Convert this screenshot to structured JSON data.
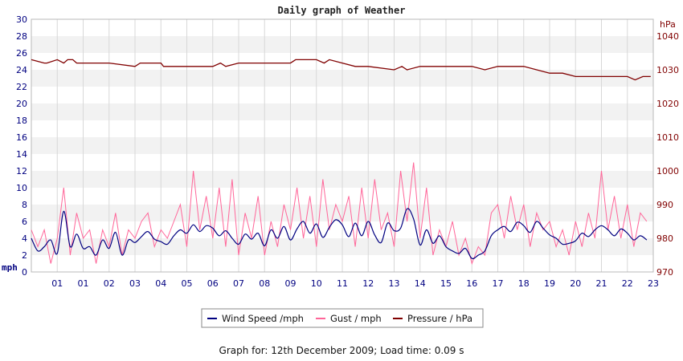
{
  "chart_data": {
    "type": "line",
    "title": "Daily graph of Weather",
    "left_axis": {
      "unit": "mph",
      "ylim": [
        0,
        30
      ],
      "ticks": [
        "0",
        "2",
        "4",
        "6",
        "8",
        "10",
        "12",
        "14",
        "16",
        "18",
        "20",
        "22",
        "24",
        "26",
        "28",
        "30"
      ]
    },
    "right_axis": {
      "unit": "hPa",
      "ylim": [
        970,
        1045
      ],
      "ticks": [
        "970",
        "980",
        "990",
        "1000",
        "1010",
        "1020",
        "1030",
        "1040"
      ]
    },
    "x_axis": {
      "range": [
        0,
        24
      ],
      "ticks": [
        "01",
        "01",
        "02",
        "03",
        "04",
        "05",
        "06",
        "07",
        "08",
        "09",
        "10",
        "11",
        "12",
        "13",
        "14",
        "15",
        "16",
        "17",
        "18",
        "19",
        "20",
        "21",
        "22",
        "23"
      ]
    },
    "grid": true,
    "legend_position": "bottom-center",
    "colors": {
      "wind": "#000080",
      "gust": "#ff6699",
      "pressure": "#800000",
      "band": "#f2f2f2",
      "grid": "#d8d8d8"
    },
    "series": [
      {
        "name": "Wind Speed /mph",
        "axis": "left",
        "x": [
          0,
          0.25,
          0.5,
          0.75,
          1,
          1.25,
          1.5,
          1.75,
          2,
          2.25,
          2.5,
          2.75,
          3,
          3.25,
          3.5,
          3.75,
          4,
          4.25,
          4.5,
          4.75,
          5,
          5.25,
          5.5,
          5.75,
          6,
          6.25,
          6.5,
          6.75,
          7,
          7.25,
          7.5,
          7.75,
          8,
          8.25,
          8.5,
          8.75,
          9,
          9.25,
          9.5,
          9.75,
          10,
          10.25,
          10.5,
          10.75,
          11,
          11.25,
          11.5,
          11.75,
          12,
          12.25,
          12.5,
          12.75,
          13,
          13.25,
          13.5,
          13.75,
          14,
          14.25,
          14.5,
          14.75,
          15,
          15.25,
          15.5,
          15.75,
          16,
          16.25,
          16.5,
          16.75,
          17,
          17.25,
          17.5,
          17.75,
          18,
          18.25,
          18.5,
          18.75,
          19,
          19.25,
          19.5,
          19.75,
          20,
          20.25,
          20.5,
          20.75,
          21,
          21.25,
          21.5,
          21.75,
          22,
          22.25,
          22.5,
          22.75,
          23,
          23.25,
          23.5,
          23.75
        ],
        "y": [
          4.0,
          2.5,
          3.0,
          3.8,
          2.2,
          7.2,
          3.0,
          4.5,
          2.8,
          3.0,
          2.0,
          3.8,
          2.8,
          4.7,
          2.0,
          3.8,
          3.5,
          4.2,
          4.8,
          3.9,
          3.6,
          3.3,
          4.3,
          5.0,
          4.6,
          5.6,
          4.8,
          5.5,
          5.2,
          4.3,
          4.9,
          4.0,
          3.3,
          4.5,
          3.9,
          4.6,
          3.1,
          5.0,
          4.0,
          5.4,
          3.8,
          5.1,
          6.0,
          4.6,
          5.7,
          4.1,
          5.3,
          6.2,
          5.6,
          4.2,
          5.8,
          4.3,
          6.0,
          4.4,
          3.5,
          5.8,
          4.9,
          5.2,
          7.5,
          6.3,
          3.2,
          5.0,
          3.4,
          4.3,
          3.0,
          2.5,
          2.2,
          2.8,
          1.6,
          2.0,
          2.5,
          4.3,
          5.0,
          5.4,
          4.8,
          5.9,
          5.5,
          4.7,
          6.0,
          5.2,
          4.4,
          4.0,
          3.3,
          3.4,
          3.7,
          4.6,
          4.2,
          5.0,
          5.5,
          5.0,
          4.3,
          5.1,
          4.6,
          3.8,
          4.3,
          3.8
        ]
      },
      {
        "name": "Gust / mph",
        "axis": "left",
        "x": [
          0,
          0.25,
          0.5,
          0.75,
          1,
          1.25,
          1.5,
          1.75,
          2,
          2.25,
          2.5,
          2.75,
          3,
          3.25,
          3.5,
          3.75,
          4,
          4.25,
          4.5,
          4.75,
          5,
          5.25,
          5.5,
          5.75,
          6,
          6.25,
          6.5,
          6.75,
          7,
          7.25,
          7.5,
          7.75,
          8,
          8.25,
          8.5,
          8.75,
          9,
          9.25,
          9.5,
          9.75,
          10,
          10.25,
          10.5,
          10.75,
          11,
          11.25,
          11.5,
          11.75,
          12,
          12.25,
          12.5,
          12.75,
          13,
          13.25,
          13.5,
          13.75,
          14,
          14.25,
          14.5,
          14.75,
          15,
          15.25,
          15.5,
          15.75,
          16,
          16.25,
          16.5,
          16.75,
          17,
          17.25,
          17.5,
          17.75,
          18,
          18.25,
          18.5,
          18.75,
          19,
          19.25,
          19.5,
          19.75,
          20,
          20.25,
          20.5,
          20.75,
          21,
          21.25,
          21.5,
          21.75,
          22,
          22.25,
          22.5,
          22.75,
          23,
          23.25,
          23.5,
          23.75
        ],
        "y": [
          5,
          3,
          5,
          1,
          4,
          10,
          2,
          7,
          4,
          5,
          1,
          5,
          3,
          7,
          2,
          5,
          4,
          6,
          7,
          3,
          5,
          4,
          6,
          8,
          3,
          12,
          5,
          9,
          4,
          10,
          3,
          11,
          2,
          7,
          4,
          9,
          2,
          6,
          3,
          8,
          5,
          10,
          4,
          9,
          3,
          11,
          5,
          8,
          6,
          9,
          3,
          10,
          4,
          11,
          5,
          7,
          3,
          12,
          6,
          13,
          4,
          10,
          2,
          5,
          3,
          6,
          2,
          4,
          1,
          3,
          2,
          7,
          8,
          4,
          9,
          5,
          8,
          3,
          7,
          5,
          6,
          3,
          5,
          2,
          6,
          3,
          7,
          4,
          12,
          5,
          9,
          4,
          8,
          3,
          7,
          6
        ]
      },
      {
        "name": "Pressure / hPa",
        "axis": "right",
        "x": [
          0,
          0.5,
          0.6,
          1.0,
          1.25,
          1.4,
          1.6,
          1.75,
          2.0,
          3,
          4,
          4.2,
          4.4,
          5,
          5.1,
          6,
          7,
          7.3,
          7.5,
          8,
          9,
          10,
          10.2,
          10.3,
          11,
          11.3,
          11.5,
          12,
          12.5,
          13,
          14,
          14.3,
          14.5,
          15,
          16,
          17,
          17.5,
          18,
          19,
          20,
          20.5,
          21,
          22,
          23,
          23.3,
          23.6,
          23.9
        ],
        "y": [
          1033,
          1032,
          1032,
          1033,
          1032,
          1033,
          1033,
          1032,
          1032,
          1032,
          1031,
          1032,
          1032,
          1032,
          1031,
          1031,
          1031,
          1032,
          1031,
          1032,
          1032,
          1032,
          1033,
          1033,
          1033,
          1032,
          1033,
          1032,
          1031,
          1031,
          1030,
          1031,
          1030,
          1031,
          1031,
          1031,
          1030,
          1031,
          1031,
          1029,
          1029,
          1028,
          1028,
          1028,
          1027,
          1028,
          1028
        ]
      }
    ]
  },
  "legend": {
    "items": [
      {
        "label": "Wind Speed /mph",
        "color": "#000080"
      },
      {
        "label": "Gust / mph",
        "color": "#ff6699"
      },
      {
        "label": "Pressure / hPa",
        "color": "#800000"
      }
    ]
  },
  "footer": {
    "text": "Graph for: 12th December 2009; Load time: 0.09 s"
  }
}
